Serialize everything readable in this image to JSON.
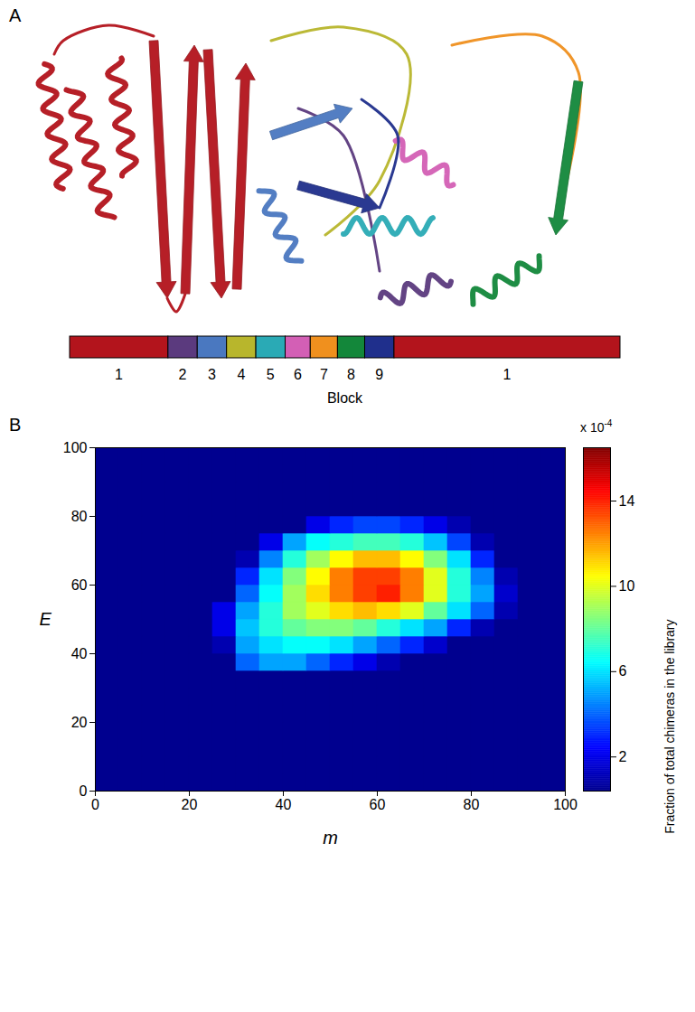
{
  "panel_a": {
    "label": "A",
    "axis_title": "Block",
    "blocks": [
      {
        "label": "1",
        "color": "#b3141c",
        "residues": 47
      },
      {
        "label": "2",
        "color": "#5b3a7e",
        "residues": 14
      },
      {
        "label": "3",
        "color": "#4a78c0",
        "residues": 14
      },
      {
        "label": "4",
        "color": "#b8b62c",
        "residues": 14
      },
      {
        "label": "5",
        "color": "#2aaab5",
        "residues": 14
      },
      {
        "label": "6",
        "color": "#d35fb5",
        "residues": 12
      },
      {
        "label": "7",
        "color": "#f0901e",
        "residues": 13
      },
      {
        "label": "8",
        "color": "#13873a",
        "residues": 13
      },
      {
        "label": "9",
        "color": "#1f2f8c",
        "residues": 14
      },
      {
        "label": "1",
        "color": "#b3141c",
        "residues": 108
      }
    ]
  },
  "chart_data": {
    "panel_label": "B",
    "type": "heatmap",
    "x_label": "m",
    "y_label": "E",
    "xlim": [
      0,
      100
    ],
    "ylim": [
      0,
      100
    ],
    "xticks": [
      0,
      20,
      40,
      60,
      80,
      100
    ],
    "yticks": [
      0,
      20,
      40,
      60,
      80,
      100
    ],
    "x_bins": [
      0,
      5,
      10,
      15,
      20,
      25,
      30,
      35,
      40,
      45,
      50,
      55,
      60,
      65,
      70,
      75,
      80,
      85,
      90,
      95,
      100
    ],
    "y_bins": [
      0,
      5,
      10,
      15,
      20,
      25,
      30,
      35,
      40,
      45,
      50,
      55,
      60,
      65,
      70,
      75,
      80,
      85,
      90,
      95,
      100
    ],
    "cells": [
      [
        0,
        0,
        0,
        0,
        0,
        0,
        0,
        0,
        0,
        0,
        0,
        0,
        0,
        0,
        0,
        0,
        0,
        0,
        0,
        0
      ],
      [
        0,
        0,
        0,
        0,
        0,
        0,
        0,
        0,
        0,
        0,
        0,
        0,
        0,
        0,
        0,
        0,
        0,
        0,
        0,
        0
      ],
      [
        0,
        0,
        0,
        0,
        0,
        0,
        0,
        0,
        0,
        0,
        0,
        0,
        0,
        0,
        0,
        0,
        0,
        0,
        0,
        0
      ],
      [
        0,
        0,
        0,
        0,
        0,
        0,
        0,
        0,
        0,
        0,
        0,
        0,
        0,
        0,
        0,
        0,
        0,
        0,
        0,
        0
      ],
      [
        0,
        0,
        0,
        0,
        0,
        0,
        0,
        0,
        0,
        0,
        0,
        0,
        0,
        0,
        0,
        0,
        0,
        0,
        0,
        0
      ],
      [
        0,
        0,
        0,
        0,
        0,
        0,
        0,
        0,
        0,
        0,
        0,
        0,
        0,
        0,
        0,
        0,
        0,
        0,
        0,
        0
      ],
      [
        0,
        0,
        0,
        0,
        0,
        0,
        0,
        0,
        0,
        0,
        0,
        0,
        0,
        0,
        0,
        0,
        0,
        0,
        0,
        0
      ],
      [
        0,
        0,
        0,
        0,
        0,
        0,
        4,
        5,
        5,
        4,
        3,
        2,
        1,
        0,
        0,
        0,
        0,
        0,
        0,
        0
      ],
      [
        0,
        0,
        0,
        0,
        0,
        1,
        5,
        6,
        6.5,
        6.5,
        6,
        5,
        4,
        3,
        1.5,
        0,
        0,
        0,
        0,
        0
      ],
      [
        0,
        0,
        0,
        0,
        0,
        2,
        5.5,
        7,
        8,
        8.5,
        8.5,
        8,
        7,
        6,
        5,
        3,
        1,
        0,
        0,
        0
      ],
      [
        0,
        0,
        0,
        0,
        0,
        2,
        5,
        7,
        9,
        10,
        11,
        11.5,
        11,
        10,
        8,
        6,
        4,
        1,
        0,
        0
      ],
      [
        0,
        0,
        0,
        0,
        0,
        0,
        4,
        6.5,
        9,
        11,
        12.5,
        13.5,
        14,
        12.5,
        10,
        7,
        5,
        1.5,
        0,
        0
      ],
      [
        0,
        0,
        0,
        0,
        0,
        0,
        3,
        6,
        8.5,
        10.5,
        12.5,
        13.5,
        13.5,
        12.5,
        10,
        7,
        4.5,
        1,
        0,
        0
      ],
      [
        0,
        0,
        0,
        0,
        0,
        0,
        1,
        4.5,
        7,
        9,
        10.5,
        11.5,
        11.5,
        10.5,
        8.5,
        6,
        3,
        0,
        0,
        0
      ],
      [
        0,
        0,
        0,
        0,
        0,
        0,
        0,
        2,
        5,
        6.5,
        7,
        7.5,
        7.5,
        7,
        5.5,
        3.5,
        1,
        0,
        0,
        0
      ],
      [
        0,
        0,
        0,
        0,
        0,
        0,
        0,
        0,
        0,
        2,
        3,
        3.5,
        3.5,
        3,
        2,
        1,
        0,
        0,
        0,
        0
      ],
      [
        0,
        0,
        0,
        0,
        0,
        0,
        0,
        0,
        0,
        0,
        0,
        0,
        0,
        0,
        0,
        0,
        0,
        0,
        0,
        0
      ],
      [
        0,
        0,
        0,
        0,
        0,
        0,
        0,
        0,
        0,
        0,
        0,
        0,
        0,
        0,
        0,
        0,
        0,
        0,
        0,
        0
      ],
      [
        0,
        0,
        0,
        0,
        0,
        0,
        0,
        0,
        0,
        0,
        0,
        0,
        0,
        0,
        0,
        0,
        0,
        0,
        0,
        0
      ],
      [
        0,
        0,
        0,
        0,
        0,
        0,
        0,
        0,
        0,
        0,
        0,
        0,
        0,
        0,
        0,
        0,
        0,
        0,
        0,
        0
      ]
    ],
    "colorbar": {
      "label": "Fraction of total chimeras in the library",
      "multiplier": {
        "base": "x 10",
        "exponent": "-4"
      },
      "range": [
        0.4,
        16.5
      ],
      "ticks": [
        2,
        6,
        10,
        14
      ]
    }
  }
}
